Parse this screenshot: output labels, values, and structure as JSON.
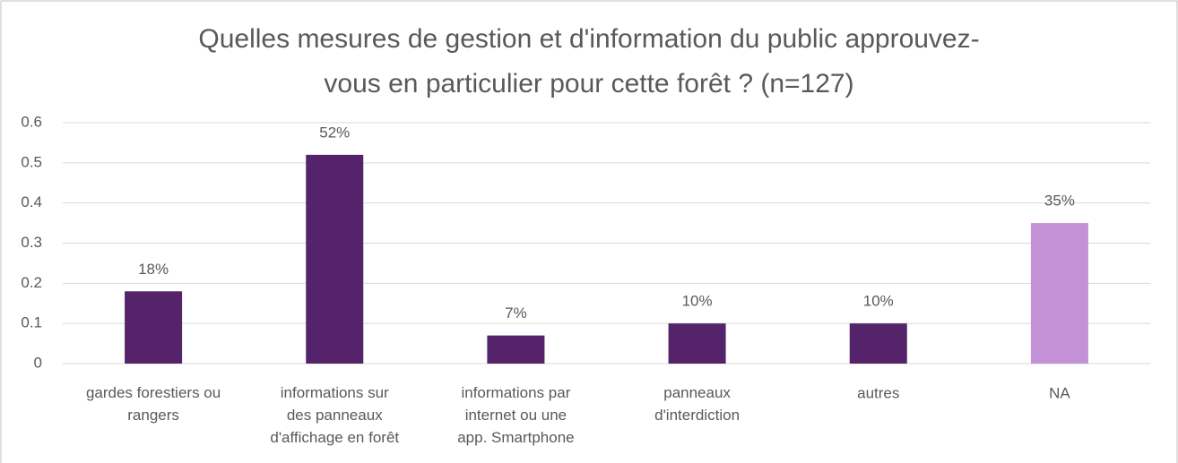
{
  "chart_data": {
    "type": "bar",
    "title": "Quelles mesures de gestion et d'information du public approuvez-\nvous en particulier pour cette forêt ? (n=127)",
    "categories": [
      "gardes forestiers ou\nrangers",
      "informations sur\ndes panneaux\nd'affichage en forêt",
      "informations par\ninternet ou une\napp. Smartphone",
      "panneaux\nd'interdiction",
      "autres",
      "NA"
    ],
    "values": [
      0.18,
      0.52,
      0.07,
      0.1,
      0.1,
      0.35
    ],
    "value_labels": [
      "18%",
      "52%",
      "7%",
      "10%",
      "10%",
      "35%"
    ],
    "colors": [
      "#542369",
      "#542369",
      "#542369",
      "#542369",
      "#542369",
      "#c291d6"
    ],
    "ylim": [
      0,
      0.6
    ],
    "yticks": [
      0,
      0.1,
      0.2,
      0.3,
      0.4,
      0.5,
      0.6
    ],
    "grid": true
  }
}
